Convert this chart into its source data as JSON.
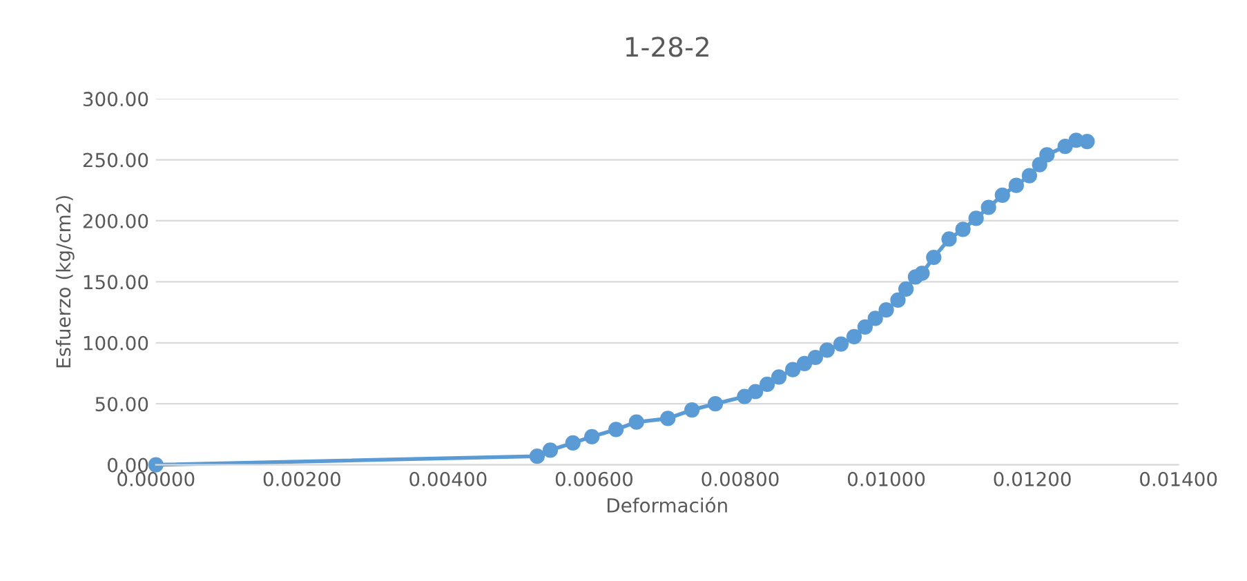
{
  "chart_data": {
    "type": "line",
    "title": "1-28-2",
    "xlabel": "Deformación",
    "ylabel": "Esfuerzo (kg/cm2)",
    "xlim": [
      0,
      0.014
    ],
    "ylim": [
      0,
      300
    ],
    "xticks": [
      {
        "value": 0,
        "label": "0.00000"
      },
      {
        "value": 0.002,
        "label": "0.00200"
      },
      {
        "value": 0.004,
        "label": "0.00400"
      },
      {
        "value": 0.006,
        "label": "0.00600"
      },
      {
        "value": 0.008,
        "label": "0.00800"
      },
      {
        "value": 0.01,
        "label": "0.01000"
      },
      {
        "value": 0.012,
        "label": "0.01200"
      },
      {
        "value": 0.014,
        "label": "0.01400"
      }
    ],
    "yticks": [
      {
        "value": 0,
        "label": "0.00"
      },
      {
        "value": 50,
        "label": "50.00"
      },
      {
        "value": 100,
        "label": "100.00"
      },
      {
        "value": 150,
        "label": "150.00"
      },
      {
        "value": 200,
        "label": "200.00"
      },
      {
        "value": 250,
        "label": "250.00"
      },
      {
        "value": 300,
        "label": "300.00"
      }
    ],
    "grid": "y",
    "marker": "circle",
    "line_style": "solid",
    "series": [
      {
        "color": "#5b9bd5",
        "x": [
          0,
          0.00522,
          0.0054,
          0.00571,
          0.00597,
          0.0063,
          0.00658,
          0.00701,
          0.00734,
          0.00766,
          0.00806,
          0.00821,
          0.00837,
          0.00853,
          0.00872,
          0.00888,
          0.00903,
          0.00919,
          0.00938,
          0.00956,
          0.00971,
          0.00985,
          0.01,
          0.01016,
          0.01027,
          0.0104,
          0.01049,
          0.01065,
          0.01086,
          0.01105,
          0.01123,
          0.0114,
          0.01159,
          0.01178,
          0.01196,
          0.0121,
          0.0122,
          0.01245,
          0.0126,
          0.01275
        ],
        "values": [
          0,
          7,
          12,
          18,
          23,
          29,
          35,
          38,
          45,
          50,
          56,
          60,
          66,
          72,
          78,
          83,
          88,
          94,
          99,
          105,
          113,
          120,
          127,
          135,
          144,
          154,
          157,
          170,
          185,
          193,
          202,
          211,
          221,
          229,
          237,
          246,
          254,
          261,
          266,
          265
        ]
      }
    ]
  }
}
